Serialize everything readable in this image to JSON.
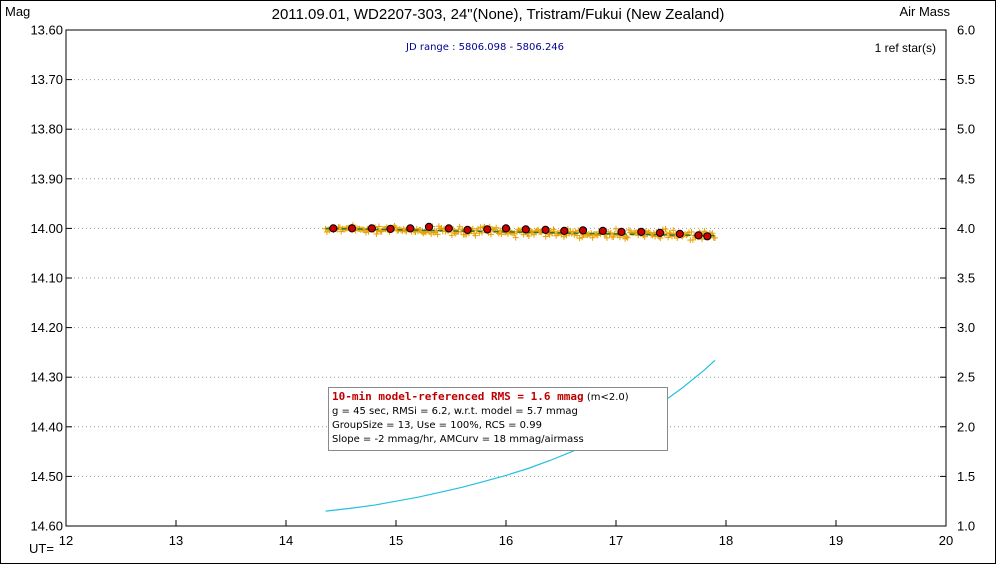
{
  "chart_data": {
    "type": "scatter",
    "title": "2011.09.01, WD2207-303, 24\"(None), Tristram/Fukui (New Zealand)",
    "ylabel_left": "Mag",
    "ylabel_right": "Air Mass",
    "xlabel": "UT=",
    "xlim": [
      12,
      20
    ],
    "ylim_left": [
      14.6,
      13.6
    ],
    "ylim_right": [
      1.0,
      6.0
    ],
    "x_ticks": [
      "12",
      "13",
      "14",
      "15",
      "16",
      "17",
      "18",
      "19",
      "20"
    ],
    "y_left_ticks": [
      "13.60",
      "13.70",
      "13.80",
      "13.90",
      "14.00",
      "14.10",
      "14.20",
      "14.30",
      "14.40",
      "14.50",
      "14.60"
    ],
    "y_right_ticks": [
      "6.0",
      "5.5",
      "5.0",
      "4.5",
      "4.0",
      "3.5",
      "3.0",
      "2.5",
      "2.0",
      "1.5",
      "1.0"
    ],
    "colors": {
      "raw_points": "#e8a000",
      "binned_points": "#cc0000",
      "model_line": "#2a7a2a",
      "airmass_curve": "#22c0e0"
    },
    "raw_observations": {
      "x_start": 14.36,
      "x_end": 17.9,
      "count": 300,
      "mag_start": 14.0,
      "mag_end": 14.015,
      "scatter_mag": 0.006
    },
    "binned_points": {
      "x": [
        14.43,
        14.6,
        14.78,
        14.95,
        15.13,
        15.3,
        15.48,
        15.65,
        15.83,
        16.0,
        16.18,
        16.36,
        16.53,
        16.7,
        16.88,
        17.05,
        17.23,
        17.4,
        17.58,
        17.75,
        17.83
      ],
      "mag": [
        14.0,
        14.0,
        14.0,
        14.001,
        14.0,
        13.997,
        14.0,
        14.003,
        14.002,
        14.0,
        14.002,
        14.003,
        14.005,
        14.004,
        14.005,
        14.007,
        14.007,
        14.009,
        14.011,
        14.014,
        14.016
      ]
    },
    "model_line": {
      "x": [
        14.36,
        17.9
      ],
      "mag": [
        14.0,
        14.015
      ]
    },
    "airmass_curve": {
      "x": [
        14.36,
        14.6,
        14.8,
        15.0,
        15.2,
        15.4,
        15.6,
        15.8,
        16.0,
        16.2,
        16.4,
        16.6,
        16.8,
        17.0,
        17.2,
        17.4,
        17.6,
        17.8,
        17.9
      ],
      "airmass": [
        1.15,
        1.18,
        1.21,
        1.25,
        1.29,
        1.34,
        1.39,
        1.45,
        1.51,
        1.58,
        1.66,
        1.75,
        1.85,
        1.96,
        2.09,
        2.23,
        2.39,
        2.57,
        2.67
      ]
    },
    "annotations": {
      "jd_range": "JD range : 5806.098 - 5806.246",
      "ref_stars": "1 ref star(s)",
      "info_line1_main": "10-min model-referenced RMS = 1.6 mmag",
      "info_line1_cond": "(m<2.0)",
      "info_line2": "g = 45 sec, RMSi = 6.2, w.r.t. model = 5.7 mmag",
      "info_line3": "GroupSize = 13, Use = 100%, RCS = 0.99",
      "info_line4": "Slope = -2 mmag/hr, AMCurv = 18 mmag/airmass"
    }
  }
}
